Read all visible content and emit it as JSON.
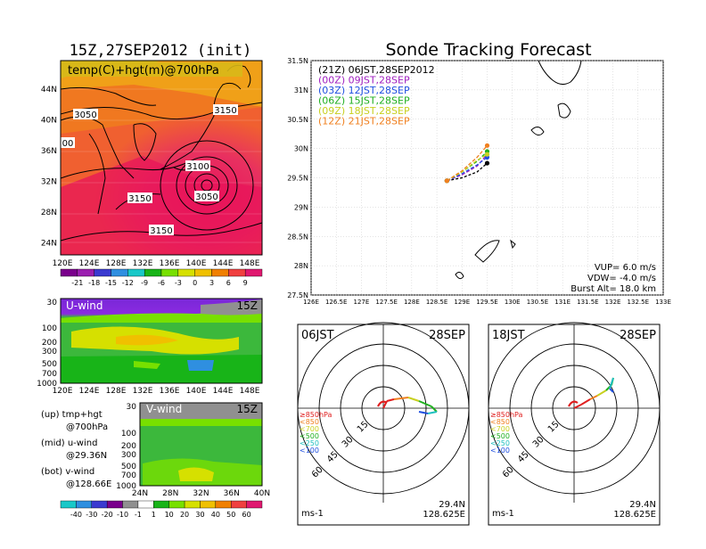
{
  "left_title": "15Z,27SEP2012 (init)",
  "main_title": "Sonde Tracking Forecast",
  "top_map": {
    "label": "temp(C)+hgt(m)@700hPa",
    "lat_labels": [
      "44N",
      "40N",
      "36N",
      "32N",
      "28N",
      "24N"
    ],
    "lon_labels": [
      "120E",
      "124E",
      "128E",
      "132E",
      "136E",
      "140E",
      "144E",
      "148E"
    ],
    "contour_labels": [
      "3050",
      "3150",
      "3100",
      "3150",
      "3050",
      "3150",
      "00"
    ]
  },
  "temp_colorbar": {
    "labels": [
      "-21",
      "-18",
      "-15",
      "-12",
      "-9",
      "-6",
      "-3",
      "0",
      "3",
      "6",
      "9"
    ],
    "colors": [
      "#7a008c",
      "#9b1fb0",
      "#3a3ad0",
      "#2f8fe0",
      "#19c8c8",
      "#18b418",
      "#78e000",
      "#d6e000",
      "#f0c000",
      "#f08000",
      "#f04040",
      "#e01870"
    ]
  },
  "u_wind": {
    "label": "U-wind",
    "time": "15Z",
    "p_labels": [
      "30",
      "100",
      "200",
      "300",
      "500",
      "700",
      "1000"
    ],
    "lon_labels": [
      "120E",
      "124E",
      "128E",
      "132E",
      "136E",
      "140E",
      "144E",
      "148E"
    ]
  },
  "v_wind": {
    "label": "V-wind",
    "time": "15Z",
    "p_labels": [
      "30",
      "100",
      "200",
      "300",
      "500",
      "700",
      "1000"
    ],
    "lat_labels": [
      "24N",
      "28N",
      "32N",
      "36N",
      "40N"
    ]
  },
  "wind_colorbar": {
    "labels": [
      "-40",
      "-30",
      "-20",
      "-10",
      "-1",
      "1",
      "10",
      "20",
      "30",
      "40",
      "50",
      "60"
    ],
    "colors": [
      "#19c8c8",
      "#2f8fe0",
      "#3a3ad0",
      "#7a008c",
      "#909090",
      "#ffffff",
      "#18b418",
      "#78e000",
      "#d6e000",
      "#f0c000",
      "#f08000",
      "#f04040",
      "#e01870"
    ]
  },
  "notes": {
    "up": "(up) tmp+hgt",
    "up2": "@700hPa",
    "mid": "(mid) u-wind",
    "mid2": "@29.36N",
    "bot": "(bot) v-wind",
    "bot2": "@128.66E"
  },
  "track_map": {
    "lat_labels": [
      "31.5N",
      "31N",
      "30.5N",
      "30N",
      "29.5N",
      "29N",
      "28.5N",
      "28N",
      "27.5N"
    ],
    "lon_labels": [
      "126E",
      "126.5E",
      "127E",
      "127.5E",
      "128E",
      "128.5E",
      "129E",
      "129.5E",
      "130E",
      "130.5E",
      "131E",
      "131.5E",
      "132E",
      "132.5E",
      "133E"
    ],
    "legend": [
      {
        "text": "(21Z) 06JST,28SEP2012",
        "color": "#000000"
      },
      {
        "text": "(00Z) 09JST,28SEP",
        "color": "#a020c0"
      },
      {
        "text": "(03Z) 12JST,28SEP",
        "color": "#2050e0"
      },
      {
        "text": "(06Z) 15JST,28SEP",
        "color": "#20b020"
      },
      {
        "text": "(09Z) 18JST,28SEP",
        "color": "#c8d020"
      },
      {
        "text": "(12Z) 21JST,28SEP",
        "color": "#f08020"
      }
    ],
    "params": {
      "vup": "VUP= 6.0 m/s",
      "vdw": "VDW= -4.0 m/s",
      "burst": "Burst Alt= 18.0 km"
    }
  },
  "chart_data": [
    {
      "type": "line",
      "title": "Sonde Tracking Forecast",
      "xlim": [
        126,
        133
      ],
      "ylim": [
        27.5,
        31.5
      ],
      "series": [
        {
          "name": "(21Z) 06JST,28SEP2012",
          "x": [
            128.7,
            129.0,
            129.3,
            129.5
          ],
          "y": [
            29.45,
            29.5,
            29.6,
            29.75
          ]
        },
        {
          "name": "(00Z) 09JST,28SEP",
          "x": [
            128.7,
            129.0,
            129.3,
            129.5
          ],
          "y": [
            29.45,
            29.55,
            29.7,
            29.9
          ]
        },
        {
          "name": "(03Z) 12JST,28SEP",
          "x": [
            128.7,
            129.0,
            129.3,
            129.5
          ],
          "y": [
            29.45,
            29.57,
            29.72,
            29.85
          ]
        },
        {
          "name": "(06Z) 15JST,28SEP",
          "x": [
            128.7,
            129.0,
            129.3,
            129.5
          ],
          "y": [
            29.45,
            29.6,
            29.78,
            29.95
          ]
        },
        {
          "name": "(09Z) 18JST,28SEP",
          "x": [
            128.7,
            129.0,
            129.3,
            129.5
          ],
          "y": [
            29.45,
            29.6,
            29.8,
            29.9
          ]
        },
        {
          "name": "(12Z) 21JST,28SEP",
          "x": [
            128.7,
            129.0,
            129.3,
            129.5
          ],
          "y": [
            29.45,
            29.62,
            29.85,
            30.05
          ]
        }
      ]
    },
    {
      "type": "hodograph",
      "label": "06JST",
      "date": "28SEP",
      "lat": "29.4N",
      "lon": "128.625E",
      "unit": "ms-1",
      "rings": [
        "15",
        "30",
        "45",
        "60"
      ],
      "levels": [
        "≥850hPa",
        "<850",
        "<700",
        "<500",
        "<250",
        "<100"
      ],
      "level_colors": [
        "#e02020",
        "#f08020",
        "#c8d020",
        "#20b020",
        "#20c0c0",
        "#2050e0"
      ]
    },
    {
      "type": "hodograph",
      "label": "18JST",
      "date": "28SEP",
      "lat": "29.4N",
      "lon": "128.625E",
      "unit": "ms-1",
      "rings": [
        "15",
        "30",
        "45",
        "60"
      ],
      "levels": [
        "≥850hPa",
        "<850",
        "<700",
        "<500",
        "<250",
        "<100"
      ],
      "level_colors": [
        "#e02020",
        "#f08020",
        "#c8d020",
        "#20b020",
        "#20c0c0",
        "#2050e0"
      ]
    }
  ]
}
